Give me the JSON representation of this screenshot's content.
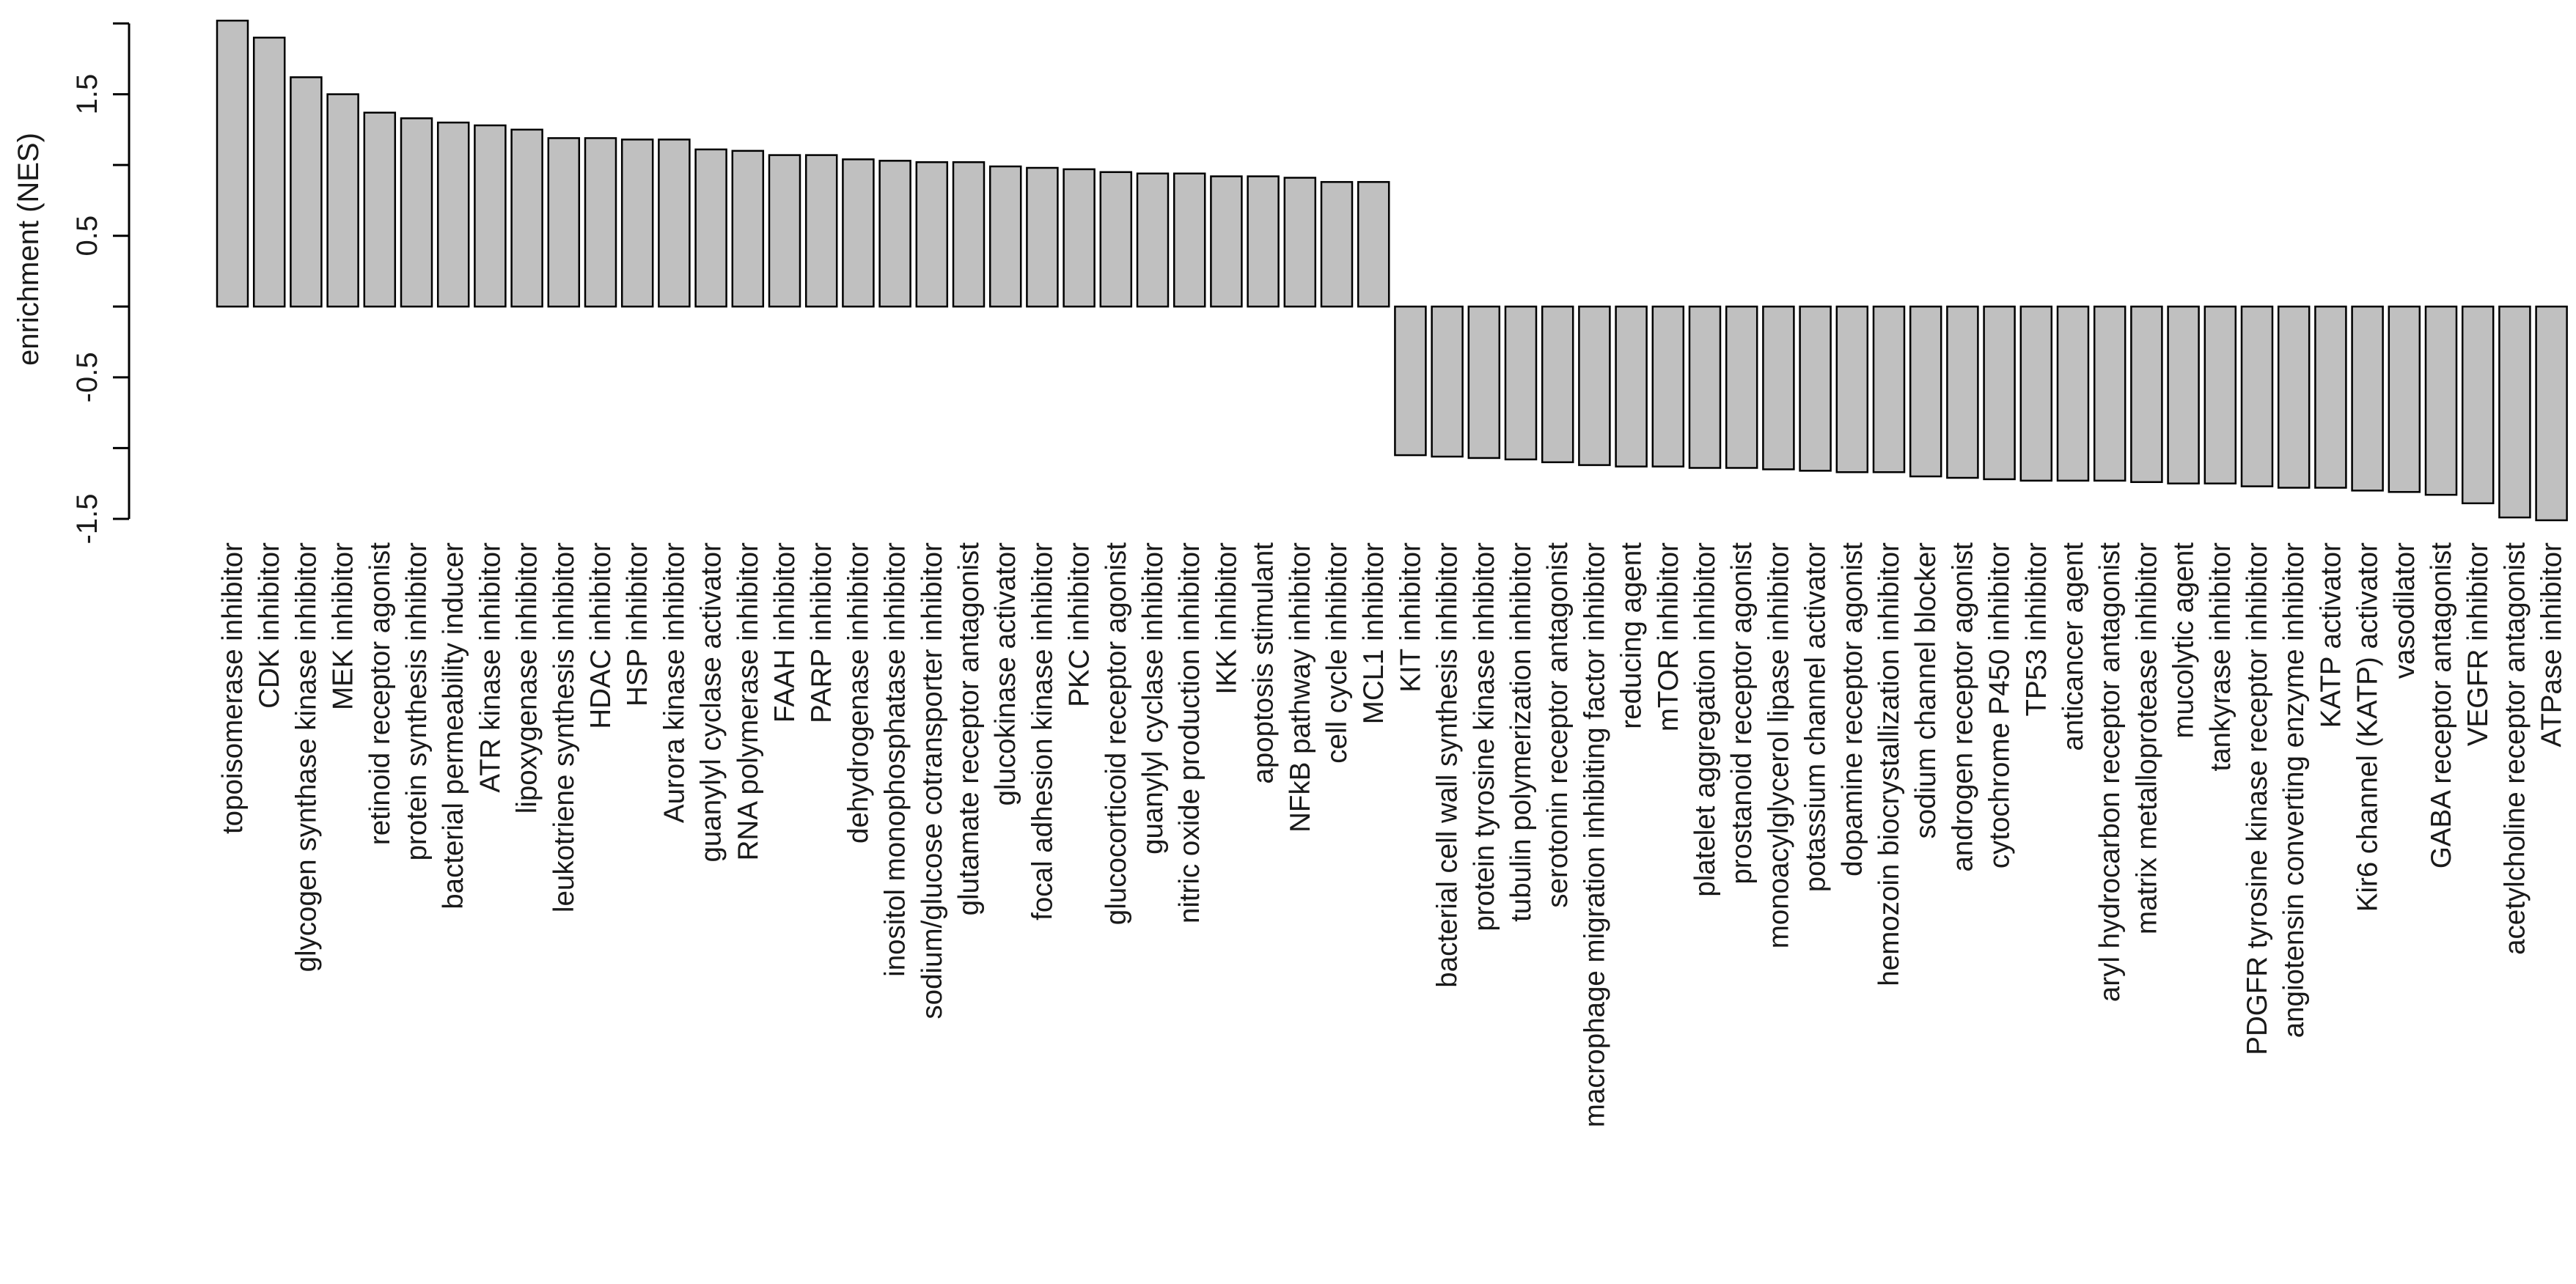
{
  "chart_data": {
    "type": "bar",
    "title": "",
    "xlabel": "",
    "ylabel": "enrichment  (NES)",
    "ylim": [
      -1.5,
      2.0
    ],
    "yticks": [
      -1.5,
      -0.5,
      0.5,
      1.5
    ],
    "ytick_labels": [
      "-1.5",
      "-0.5",
      "0.5",
      "1.5"
    ],
    "grid": false,
    "legend": "none",
    "bar_fill": "#c0c0c0",
    "bar_stroke": "#000000",
    "categories": [
      "topoisomerase inhibitor",
      "CDK inhibitor",
      "glycogen synthase kinase inhibitor",
      "MEK inhibitor",
      "retinoid receptor agonist",
      "protein synthesis inhibitor",
      "bacterial permeability inducer",
      "ATR kinase inhibitor",
      "lipoxygenase inhibitor",
      "leukotriene synthesis inhibitor",
      "HDAC inhibitor",
      "HSP inhibitor",
      "Aurora kinase inhibitor",
      "guanylyl cyclase activator",
      "RNA polymerase inhibitor",
      "FAAH inhibitor",
      "PARP inhibitor",
      "dehydrogenase inhibitor",
      "inositol monophosphatase inhibitor",
      "sodium/glucose cotransporter inhibitor",
      "glutamate receptor antagonist",
      "glucokinase activator",
      "focal adhesion kinase inhibitor",
      "PKC inhibitor",
      "glucocorticoid receptor agonist",
      "guanylyl cyclase inhibitor",
      "nitric oxide production inhibitor",
      "IKK inhibitor",
      "apoptosis stimulant",
      "NFkB pathway inhibitor",
      "cell cycle inhibitor",
      "MCL1 inhibitor",
      "KIT inhibitor",
      "bacterial cell wall synthesis inhibitor",
      "protein tyrosine kinase inhibitor",
      "tubulin polymerization inhibitor",
      "serotonin receptor antagonist",
      "macrophage migration inhibiting factor inhibitor",
      "reducing agent",
      "mTOR inhibitor",
      "platelet aggregation inhibitor",
      "prostanoid receptor agonist",
      "monoacylglycerol lipase inhibitor",
      "potassium channel activator",
      "dopamine receptor agonist",
      "hemozoin biocrystallization inhibitor",
      "sodium channel blocker",
      "androgen receptor agonist",
      "cytochrome P450 inhibitor",
      "TP53 inhibitor",
      "anticancer agent",
      "aryl hydrocarbon receptor antagonist",
      "matrix metalloprotease inhibitor",
      "mucolytic agent",
      "tankyrase inhibitor",
      "PDGFR tyrosine kinase receptor inhibitor",
      "angiotensin converting enzyme inhibitor",
      "KATP activator",
      "Kir6 channel (KATP) activator",
      "vasodilator",
      "GABA receptor antagonist",
      "VEGFR inhibitor",
      "acetylcholine receptor antagonist",
      "ATPase inhibitor"
    ],
    "values": [
      2.02,
      1.9,
      1.62,
      1.5,
      1.37,
      1.33,
      1.3,
      1.28,
      1.25,
      1.19,
      1.19,
      1.18,
      1.18,
      1.11,
      1.1,
      1.07,
      1.07,
      1.04,
      1.03,
      1.02,
      1.02,
      0.99,
      0.98,
      0.97,
      0.95,
      0.94,
      0.94,
      0.92,
      0.92,
      0.91,
      0.88,
      0.88,
      -1.05,
      -1.06,
      -1.07,
      -1.08,
      -1.1,
      -1.12,
      -1.13,
      -1.13,
      -1.14,
      -1.14,
      -1.15,
      -1.16,
      -1.17,
      -1.17,
      -1.2,
      -1.21,
      -1.22,
      -1.23,
      -1.23,
      -1.23,
      -1.24,
      -1.25,
      -1.25,
      -1.27,
      -1.28,
      -1.28,
      -1.3,
      -1.31,
      -1.33,
      -1.39,
      -1.49,
      -1.51
    ]
  }
}
